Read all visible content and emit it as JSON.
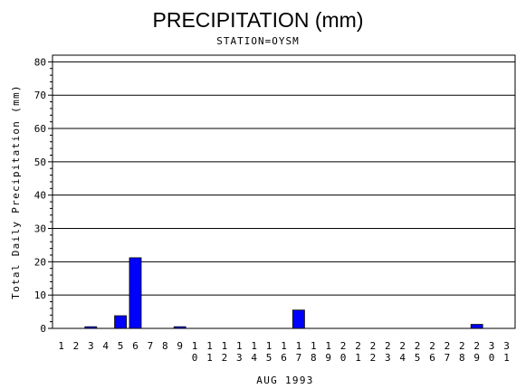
{
  "chart_data": {
    "type": "bar",
    "title": "PRECIPITATION (mm)",
    "subtitle": "STATION=OYSM",
    "xlabel": "AUG 1993",
    "ylabel": "Total Daily Precipitation (mm)",
    "ylim": [
      0,
      82
    ],
    "yticks": [
      0,
      10,
      20,
      30,
      40,
      50,
      60,
      70,
      80
    ],
    "grid": true,
    "bar_color": "#0000ff",
    "categories": [
      "1",
      "2",
      "3",
      "4",
      "5",
      "6",
      "7",
      "8",
      "9",
      "10",
      "11",
      "12",
      "13",
      "14",
      "15",
      "16",
      "17",
      "18",
      "19",
      "20",
      "21",
      "22",
      "23",
      "24",
      "25",
      "26",
      "27",
      "28",
      "29",
      "30",
      "31"
    ],
    "values": [
      0,
      0,
      0.5,
      0,
      3.8,
      21.2,
      0,
      0,
      0.5,
      0,
      0,
      0,
      0,
      0,
      0,
      0,
      5.5,
      0,
      0,
      0,
      0,
      0,
      0,
      0,
      0,
      0,
      0,
      0,
      1.2,
      0,
      0
    ]
  }
}
